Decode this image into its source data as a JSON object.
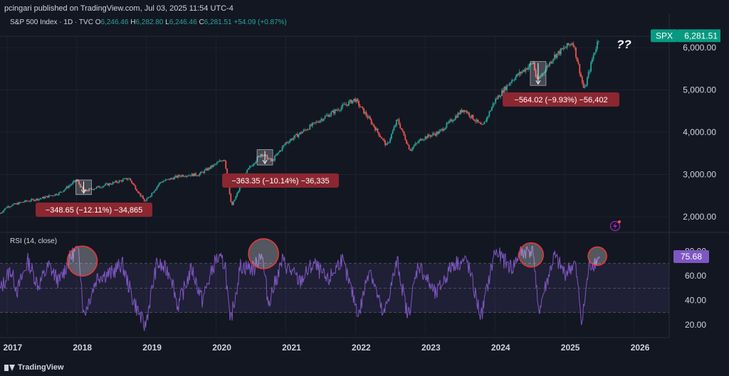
{
  "header": {
    "publisher_line": "pcingari published on TradingView.com, Jul 03, 2025 11:54 UTC-4"
  },
  "legend": {
    "symbol": "S&P 500 Index · 1D · TVC",
    "open_label": "O",
    "open": "6,246.46",
    "high_label": "H",
    "high": "6,282.80",
    "low_label": "L",
    "low": "6,246.46",
    "close_label": "C",
    "close": "6,281.51",
    "change": "+54.09 (+0.87%)"
  },
  "rsi_legend": "RSI (14, close)",
  "footer": {
    "brand": "TradingView"
  },
  "colors": {
    "background": "#131722",
    "up": "#26a69a",
    "down": "#ef5350",
    "rsi": "#7e57c2",
    "label_red": "#8b2731",
    "price_tag": "#089981"
  },
  "chart_data": [
    {
      "type": "candlestick",
      "symbol": "SPX",
      "price_tag": {
        "label": "SPX",
        "value": "6,281.51"
      },
      "y_ticks": [
        {
          "value": 6000,
          "label": "6,000.00"
        },
        {
          "value": 5000,
          "label": "5,000.00"
        },
        {
          "value": 4000,
          "label": "4,000.00"
        },
        {
          "value": 3000,
          "label": "3,000.00"
        },
        {
          "value": 2000,
          "label": "2,000.00"
        }
      ],
      "ylim": [
        1850,
        6500
      ],
      "xlim": [
        2016.9,
        2026.5
      ],
      "x_ticks": [
        {
          "value": 2017,
          "label": "2017"
        },
        {
          "value": 2018,
          "label": "2018"
        },
        {
          "value": 2019,
          "label": "2019"
        },
        {
          "value": 2020,
          "label": "2020"
        },
        {
          "value": 2021,
          "label": "2021"
        },
        {
          "value": 2022,
          "label": "2022"
        },
        {
          "value": 2023,
          "label": "2023"
        },
        {
          "value": 2024,
          "label": "2024"
        },
        {
          "value": 2025,
          "label": "2025"
        },
        {
          "value": 2026,
          "label": "2026"
        }
      ],
      "price_path": [
        [
          2016.9,
          2080
        ],
        [
          2017.0,
          2240
        ],
        [
          2017.25,
          2360
        ],
        [
          2017.5,
          2440
        ],
        [
          2017.75,
          2560
        ],
        [
          2018.0,
          2870
        ],
        [
          2018.1,
          2600
        ],
        [
          2018.3,
          2700
        ],
        [
          2018.5,
          2790
        ],
        [
          2018.75,
          2910
        ],
        [
          2018.98,
          2350
        ],
        [
          2019.2,
          2820
        ],
        [
          2019.5,
          2980
        ],
        [
          2019.75,
          3000
        ],
        [
          2020.0,
          3250
        ],
        [
          2020.12,
          3380
        ],
        [
          2020.22,
          2240
        ],
        [
          2020.45,
          3100
        ],
        [
          2020.65,
          3500
        ],
        [
          2020.8,
          3310
        ],
        [
          2021.0,
          3750
        ],
        [
          2021.5,
          4300
        ],
        [
          2021.99,
          4780
        ],
        [
          2022.2,
          4300
        ],
        [
          2022.45,
          3670
        ],
        [
          2022.6,
          4300
        ],
        [
          2022.78,
          3580
        ],
        [
          2022.95,
          3850
        ],
        [
          2023.2,
          4000
        ],
        [
          2023.55,
          4550
        ],
        [
          2023.82,
          4120
        ],
        [
          2024.0,
          4750
        ],
        [
          2024.25,
          5250
        ],
        [
          2024.55,
          5650
        ],
        [
          2024.6,
          5200
        ],
        [
          2024.85,
          5800
        ],
        [
          2025.12,
          6140
        ],
        [
          2025.28,
          4980
        ],
        [
          2025.4,
          5750
        ],
        [
          2025.5,
          6281.51
        ]
      ],
      "annotations": [
        {
          "text": "−348.65 (−12.11%) −34,865",
          "x": 2018.1,
          "y_high": 2872,
          "y_low": 2524
        },
        {
          "text": "−363.35 (−10.14%) −36,335",
          "x": 2020.7,
          "y_high": 3588,
          "y_low": 3225
        },
        {
          "text": "−564.02 (−9.93%) −56,402",
          "x": 2024.62,
          "y_high": 5670,
          "y_low": 5106
        }
      ],
      "callout_text": "??"
    },
    {
      "type": "line",
      "name": "RSI (14, close)",
      "last_value": "75.68",
      "ylim": [
        13,
        86
      ],
      "band": [
        30,
        70
      ],
      "y_ticks": [
        {
          "value": 80,
          "label": "80.00"
        },
        {
          "value": 60,
          "label": "60.00"
        },
        {
          "value": 40,
          "label": "40.00"
        },
        {
          "value": 20,
          "label": "20.00"
        }
      ],
      "series": [
        [
          2016.9,
          48
        ],
        [
          2017.05,
          65
        ],
        [
          2017.15,
          48
        ],
        [
          2017.3,
          72
        ],
        [
          2017.45,
          52
        ],
        [
          2017.6,
          68
        ],
        [
          2017.75,
          55
        ],
        [
          2017.9,
          74
        ],
        [
          2018.03,
          84
        ],
        [
          2018.1,
          28
        ],
        [
          2018.3,
          60
        ],
        [
          2018.5,
          62
        ],
        [
          2018.65,
          70
        ],
        [
          2018.8,
          42
        ],
        [
          2018.98,
          18
        ],
        [
          2019.15,
          70
        ],
        [
          2019.35,
          62
        ],
        [
          2019.45,
          35
        ],
        [
          2019.65,
          66
        ],
        [
          2019.8,
          40
        ],
        [
          2020.0,
          74
        ],
        [
          2020.13,
          70
        ],
        [
          2020.2,
          20
        ],
        [
          2020.35,
          68
        ],
        [
          2020.55,
          66
        ],
        [
          2020.65,
          80
        ],
        [
          2020.75,
          38
        ],
        [
          2020.95,
          72
        ],
        [
          2021.2,
          55
        ],
        [
          2021.4,
          70
        ],
        [
          2021.6,
          55
        ],
        [
          2021.8,
          74
        ],
        [
          2022.05,
          28
        ],
        [
          2022.2,
          68
        ],
        [
          2022.4,
          26
        ],
        [
          2022.6,
          72
        ],
        [
          2022.75,
          26
        ],
        [
          2022.9,
          70
        ],
        [
          2023.15,
          44
        ],
        [
          2023.4,
          70
        ],
        [
          2023.6,
          72
        ],
        [
          2023.8,
          26
        ],
        [
          2024.0,
          80
        ],
        [
          2024.25,
          66
        ],
        [
          2024.35,
          78
        ],
        [
          2024.55,
          82
        ],
        [
          2024.62,
          30
        ],
        [
          2024.85,
          76
        ],
        [
          2025.0,
          62
        ],
        [
          2025.15,
          70
        ],
        [
          2025.25,
          22
        ],
        [
          2025.35,
          68
        ],
        [
          2025.45,
          72
        ],
        [
          2025.5,
          75.68
        ]
      ],
      "circles": [
        {
          "x": 2018.08,
          "y": 72
        },
        {
          "x": 2020.68,
          "y": 78
        },
        {
          "x": 2024.52,
          "y": 77
        },
        {
          "x": 2025.47,
          "y": 76
        }
      ]
    }
  ]
}
